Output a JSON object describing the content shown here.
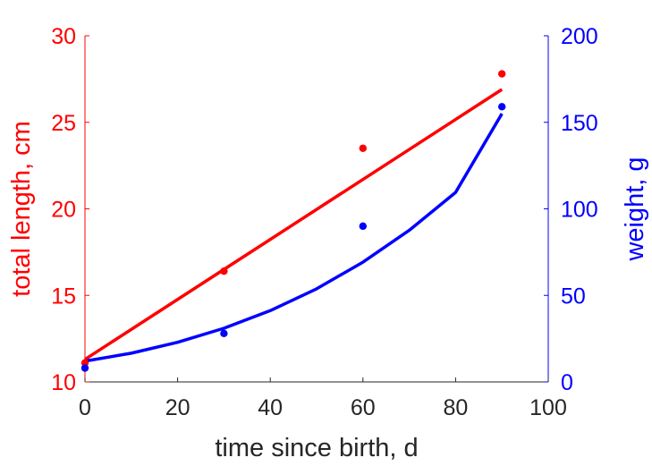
{
  "chart_data": {
    "type": "scatter",
    "title": "",
    "xlabel": "time since birth, d",
    "ylabel_left": "total length, cm",
    "ylabel_right": "weight, g",
    "xlim": [
      0,
      100
    ],
    "ylim_left": [
      10,
      30
    ],
    "ylim_right": [
      0,
      200
    ],
    "x_ticks": [
      0,
      20,
      40,
      60,
      80,
      100
    ],
    "y_left_ticks": [
      10,
      15,
      20,
      25,
      30
    ],
    "y_right_ticks": [
      0,
      50,
      100,
      150,
      200
    ],
    "grid": false,
    "colors": {
      "length": "#ff0000",
      "weight": "#0000ff",
      "axis": "#262626"
    },
    "series": [
      {
        "axis": "left",
        "color": "#ff0000",
        "points": {
          "x": [
            0,
            30,
            60,
            90
          ],
          "y": [
            11.1,
            16.4,
            23.5,
            27.8
          ]
        },
        "fit": {
          "kind": "linear",
          "x": [
            0,
            90
          ],
          "y": [
            11.3,
            26.9
          ]
        }
      },
      {
        "axis": "right",
        "color": "#0000ff",
        "points": {
          "x": [
            0,
            30,
            60,
            90
          ],
          "y": [
            8,
            28,
            90,
            159
          ]
        },
        "fit": {
          "kind": "curve",
          "x": [
            0,
            10,
            20,
            30,
            40,
            50,
            60,
            70,
            80,
            90
          ],
          "y": [
            12,
            16.6,
            22.9,
            31,
            41.2,
            53.8,
            69.2,
            87.6,
            109.5,
            155
          ]
        }
      }
    ]
  }
}
